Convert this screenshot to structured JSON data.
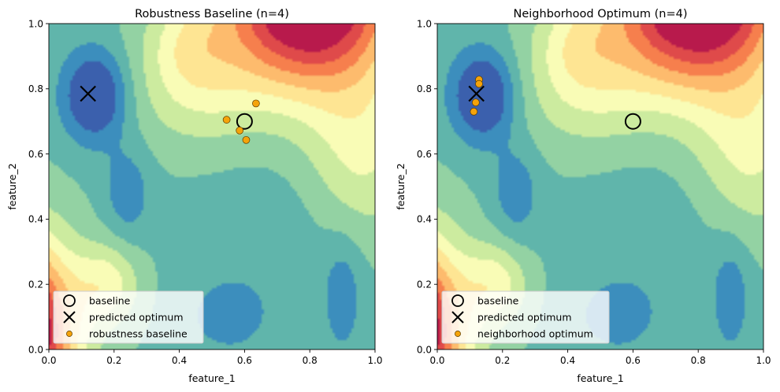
{
  "chart_data": [
    {
      "type": "contour",
      "title": "Robustness Baseline (n=4)",
      "xlabel": "feature_1",
      "ylabel": "feature_2",
      "xlim": [
        0,
        1
      ],
      "ylim": [
        0,
        1
      ],
      "xticks": [
        "0.0",
        "0.2",
        "0.4",
        "0.6",
        "0.8",
        "1.0"
      ],
      "yticks": [
        "0.0",
        "0.2",
        "0.4",
        "0.6",
        "0.8",
        "1.0"
      ],
      "legend_position": "lower-left",
      "series": [
        {
          "name": "baseline",
          "marker": "open-circle",
          "points": [
            [
              0.6,
              0.7
            ]
          ]
        },
        {
          "name": "predicted optimum",
          "marker": "x",
          "points": [
            [
              0.12,
              0.785
            ]
          ]
        },
        {
          "name": "robustness baseline",
          "marker": "filled-circle",
          "color": "#f5a30a",
          "points": [
            [
              0.545,
              0.705
            ],
            [
              0.635,
              0.755
            ],
            [
              0.585,
              0.672
            ],
            [
              0.605,
              0.643
            ]
          ]
        }
      ]
    },
    {
      "type": "contour",
      "title": "Neighborhood Optimum (n=4)",
      "xlabel": "feature_1",
      "ylabel": "feature_2",
      "xlim": [
        0,
        1
      ],
      "ylim": [
        0,
        1
      ],
      "xticks": [
        "0.0",
        "0.2",
        "0.4",
        "0.6",
        "0.8",
        "1.0"
      ],
      "yticks": [
        "0.0",
        "0.2",
        "0.4",
        "0.6",
        "0.8",
        "1.0"
      ],
      "legend_position": "lower-left",
      "series": [
        {
          "name": "baseline",
          "marker": "open-circle",
          "points": [
            [
              0.6,
              0.7
            ]
          ]
        },
        {
          "name": "predicted optimum",
          "marker": "x",
          "points": [
            [
              0.12,
              0.785
            ]
          ]
        },
        {
          "name": "neighborhood optimum",
          "marker": "filled-circle",
          "color": "#f5a30a",
          "points": [
            [
              0.128,
              0.828
            ],
            [
              0.128,
              0.815
            ],
            [
              0.118,
              0.758
            ],
            [
              0.112,
              0.73
            ]
          ]
        }
      ]
    }
  ],
  "colormap": [
    "#3b60ad",
    "#3c8ebd",
    "#60b5ab",
    "#93d2a3",
    "#cceb9f",
    "#f9fcb6",
    "#fee593",
    "#fdbb6d",
    "#f67f4d",
    "#df4a4a",
    "#b81a4c"
  ]
}
